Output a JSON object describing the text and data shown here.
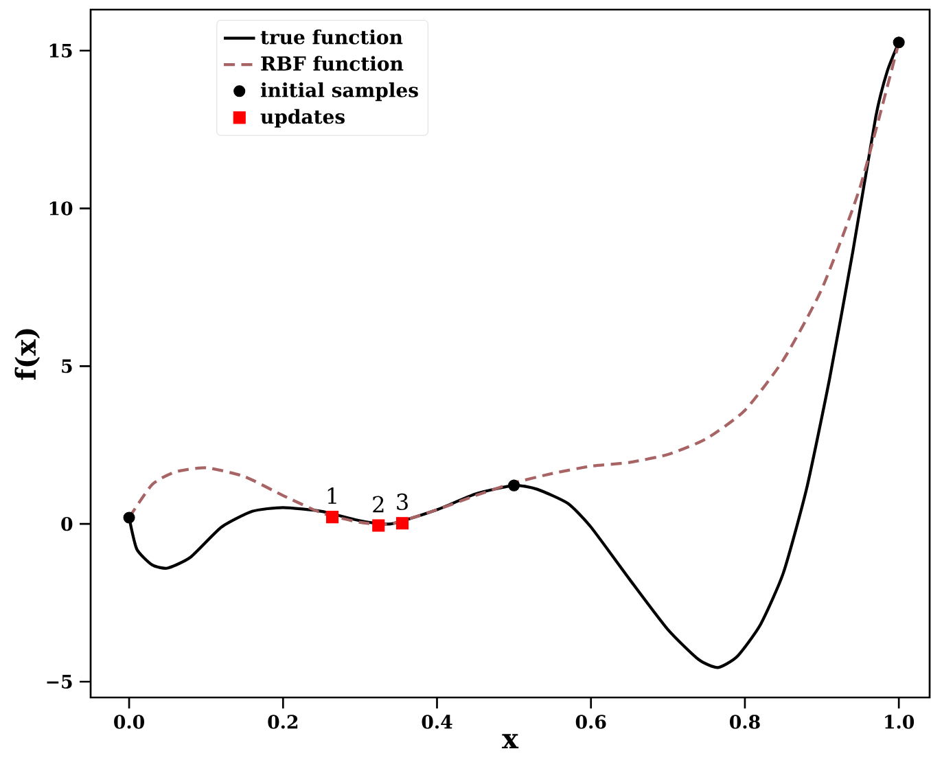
{
  "chart_data": {
    "type": "line",
    "xlabel": "x",
    "ylabel": "f(x)",
    "xlim": [
      -0.05,
      1.04
    ],
    "ylim": [
      -5.5,
      16.3
    ],
    "xticks": [
      {
        "value": 0,
        "label": "0.0"
      },
      0.2,
      0.4,
      0.6,
      0.8,
      {
        "value": 1,
        "label": "1.0"
      }
    ],
    "yticks": [
      {
        "value": -5,
        "label": "−5"
      },
      0,
      5,
      10,
      15
    ],
    "grid": false,
    "legend": "top left",
    "series": [
      {
        "name": "true function",
        "color": "#000000",
        "line_style": "solid",
        "marker": "none",
        "x": [
          0,
          0.01,
          0.03,
          0.05,
          0.08,
          0.12,
          0.16,
          0.2,
          0.25,
          0.3,
          0.34,
          0.4,
          0.45,
          0.5,
          0.53,
          0.57,
          0.6,
          0.65,
          0.7,
          0.74,
          0.765,
          0.79,
          0.82,
          0.85,
          0.88,
          0.91,
          0.94,
          0.97,
          0.985,
          1.0
        ],
        "values": [
          0.2,
          -0.8,
          -1.3,
          -1.4,
          -1.05,
          -0.1,
          0.4,
          0.52,
          0.4,
          0.1,
          0,
          0.45,
          0.95,
          1.22,
          1.1,
          0.65,
          -0.1,
          -1.75,
          -3.35,
          -4.3,
          -4.55,
          -4.2,
          -3.2,
          -1.55,
          1.1,
          4.6,
          8.6,
          12.9,
          14.35,
          15.26
        ]
      },
      {
        "name": "RBF function",
        "color": "#a86464",
        "line_style": "dashed",
        "marker": "none",
        "x": [
          0,
          0.03,
          0.06,
          0.1,
          0.15,
          0.2,
          0.25,
          0.3,
          0.34,
          0.4,
          0.45,
          0.5,
          0.55,
          0.6,
          0.65,
          0.7,
          0.75,
          0.8,
          0.85,
          0.9,
          0.95,
          1.0
        ],
        "values": [
          0.2,
          1.25,
          1.65,
          1.78,
          1.5,
          0.9,
          0.35,
          0.05,
          0,
          0.45,
          0.9,
          1.3,
          1.6,
          1.83,
          1.95,
          2.2,
          2.7,
          3.6,
          5.2,
          7.45,
          10.7,
          15.26
        ]
      },
      {
        "name": "initial samples",
        "type": "scatter",
        "color": "#000000",
        "marker": "circle",
        "x": [
          0,
          0.5,
          1.0
        ],
        "values": [
          0.2,
          1.22,
          15.26
        ]
      },
      {
        "name": "updates",
        "type": "scatter",
        "color": "#ff0000",
        "marker": "square",
        "x": [
          0.264,
          0.324,
          0.355
        ],
        "values": [
          0.22,
          -0.05,
          0.02
        ]
      }
    ],
    "annotations": [
      {
        "text": "1",
        "x": 0.264,
        "y": 0.22
      },
      {
        "text": "2",
        "x": 0.324,
        "y": -0.05
      },
      {
        "text": "3",
        "x": 0.355,
        "y": 0.02
      }
    ]
  }
}
